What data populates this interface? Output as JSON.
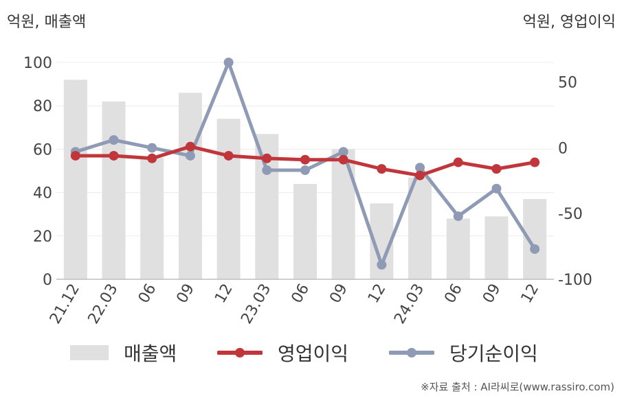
{
  "left_unit": "억원, 매출액",
  "right_unit": "억원, 영업이익",
  "source": "※자료 출처 : AI라씨로(www.rassiro.com)",
  "chart_data": {
    "type": "bar+line",
    "categories": [
      "21.12",
      "22.03",
      "06",
      "09",
      "12",
      "23.03",
      "06",
      "09",
      "12",
      "24.03",
      "06",
      "09",
      "12"
    ],
    "left_axis": {
      "ylim": [
        0,
        100
      ],
      "ticks": [
        0,
        20,
        40,
        60,
        80,
        100
      ]
    },
    "right_axis": {
      "ylim": [
        -100,
        65
      ],
      "ticks": [
        -100,
        -50,
        0,
        50
      ]
    },
    "series": [
      {
        "name": "매출액",
        "type": "bar",
        "axis": "left",
        "color": "#e0e0e0",
        "values": [
          92,
          82,
          56,
          86,
          74,
          67,
          44,
          60,
          35,
          47,
          28,
          29,
          37
        ]
      },
      {
        "name": "영업이익",
        "type": "line",
        "axis": "right",
        "color": "#c0363a",
        "values": [
          -6,
          -6,
          -8,
          1,
          -6,
          -8,
          -9,
          -9,
          -16,
          -21,
          -11,
          -16,
          -11
        ]
      },
      {
        "name": "당기순이익",
        "type": "line",
        "axis": "right",
        "color": "#8f9bb5",
        "values": [
          -3,
          6,
          0,
          -6,
          65,
          -17,
          -17,
          -3,
          -89,
          -15,
          -52,
          -31,
          -77
        ]
      }
    ],
    "grid": true,
    "legend_position": "bottom"
  }
}
